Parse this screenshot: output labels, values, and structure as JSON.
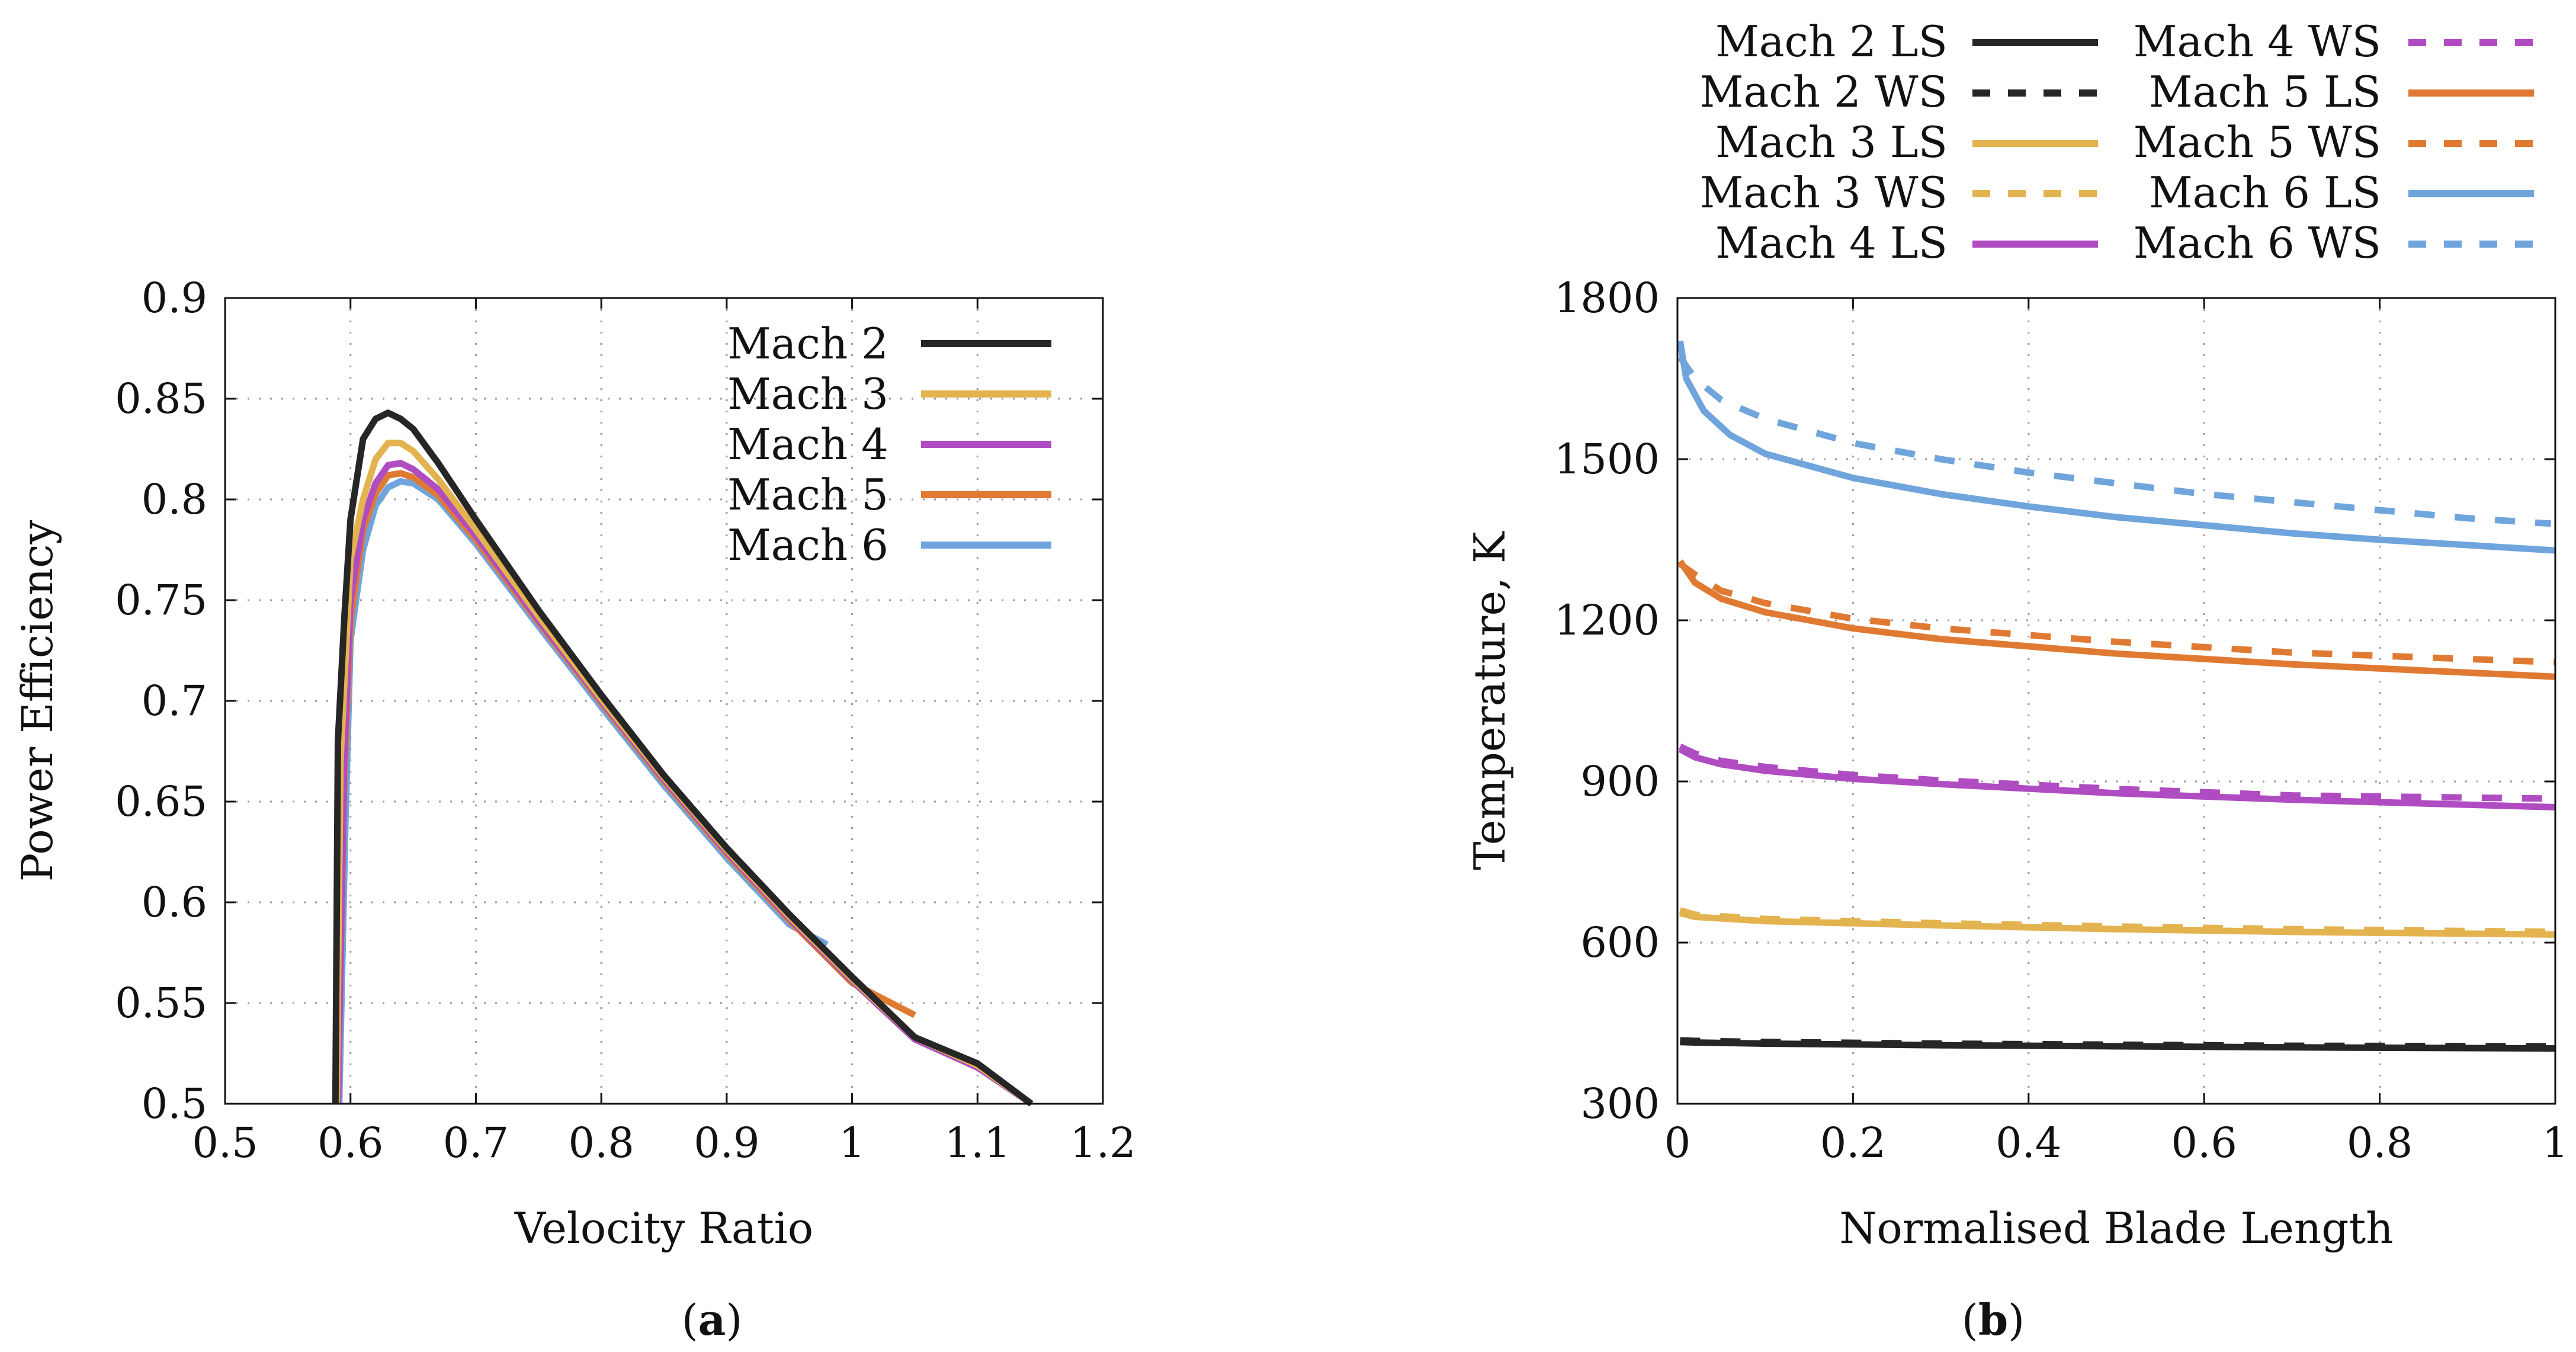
{
  "chart_data": [
    {
      "type": "line",
      "panel": "a",
      "caption_letter": "a",
      "xlabel": "Velocity Ratio",
      "ylabel": "Power Efficiency",
      "xlim": [
        0.5,
        1.2
      ],
      "ylim": [
        0.5,
        0.9
      ],
      "xticks": [
        "0.5",
        "0.6",
        "0.7",
        "0.8",
        "0.9",
        "1",
        "1.1",
        "1.2"
      ],
      "yticks": [
        "0.5",
        "0.55",
        "0.6",
        "0.65",
        "0.7",
        "0.75",
        "0.8",
        "0.85",
        "0.9"
      ],
      "grid": true,
      "legend_position": "top-right",
      "series": [
        {
          "name": "Mach 2",
          "color": "#262626",
          "x": [
            0.588,
            0.59,
            0.595,
            0.6,
            0.61,
            0.62,
            0.63,
            0.64,
            0.65,
            0.67,
            0.7,
            0.75,
            0.8,
            0.85,
            0.9,
            0.95,
            1.0,
            1.05,
            1.1,
            1.143
          ],
          "y": [
            0.5,
            0.68,
            0.74,
            0.79,
            0.83,
            0.84,
            0.843,
            0.84,
            0.835,
            0.818,
            0.79,
            0.745,
            0.703,
            0.663,
            0.627,
            0.594,
            0.563,
            0.533,
            0.52,
            0.5
          ]
        },
        {
          "name": "Mach 3",
          "color": "#e3b34f",
          "x": [
            0.589,
            0.592,
            0.6,
            0.61,
            0.62,
            0.63,
            0.64,
            0.65,
            0.67,
            0.7,
            0.75,
            0.8,
            0.85,
            0.9,
            0.95,
            1.0,
            1.05,
            1.1,
            1.143
          ],
          "y": [
            0.5,
            0.67,
            0.77,
            0.8,
            0.82,
            0.828,
            0.828,
            0.824,
            0.81,
            0.785,
            0.742,
            0.701,
            0.662,
            0.626,
            0.593,
            0.562,
            0.533,
            0.519,
            0.5
          ]
        },
        {
          "name": "Mach 4",
          "color": "#b04cc2",
          "x": [
            0.59,
            0.595,
            0.6,
            0.61,
            0.62,
            0.63,
            0.64,
            0.65,
            0.67,
            0.7,
            0.75,
            0.8,
            0.85,
            0.9,
            0.95,
            1.0,
            1.05,
            1.1,
            1.143
          ],
          "y": [
            0.5,
            0.67,
            0.75,
            0.79,
            0.808,
            0.817,
            0.818,
            0.815,
            0.805,
            0.782,
            0.74,
            0.7,
            0.661,
            0.625,
            0.592,
            0.561,
            0.532,
            0.518,
            0.5
          ]
        },
        {
          "name": "Mach 5",
          "color": "#e07a32",
          "x": [
            0.59,
            0.595,
            0.6,
            0.61,
            0.62,
            0.63,
            0.64,
            0.65,
            0.67,
            0.7,
            0.75,
            0.8,
            0.85,
            0.9,
            0.95,
            1.0,
            1.05
          ],
          "y": [
            0.5,
            0.66,
            0.74,
            0.785,
            0.803,
            0.812,
            0.813,
            0.811,
            0.802,
            0.78,
            0.739,
            0.699,
            0.66,
            0.624,
            0.591,
            0.56,
            0.544
          ]
        },
        {
          "name": "Mach 6",
          "color": "#6fa5dc",
          "x": [
            0.591,
            0.596,
            0.6,
            0.61,
            0.62,
            0.63,
            0.64,
            0.65,
            0.67,
            0.7,
            0.75,
            0.8,
            0.85,
            0.9,
            0.95,
            0.98
          ],
          "y": [
            0.5,
            0.64,
            0.73,
            0.775,
            0.797,
            0.806,
            0.809,
            0.808,
            0.8,
            0.778,
            0.737,
            0.697,
            0.658,
            0.622,
            0.589,
            0.579
          ]
        }
      ]
    },
    {
      "type": "line",
      "panel": "b",
      "caption_letter": "b",
      "xlabel": "Normalised Blade Length",
      "ylabel": "Temperature, K",
      "xlim": [
        0,
        1
      ],
      "ylim": [
        300,
        1800
      ],
      "xticks": [
        "0",
        "0.2",
        "0.4",
        "0.6",
        "0.8",
        "1"
      ],
      "yticks": [
        "300",
        "600",
        "900",
        "1200",
        "1500",
        "1800"
      ],
      "grid": true,
      "legend_position": "top, outside plot, two columns",
      "series": [
        {
          "name": "Mach 2 LS",
          "color": "#262626",
          "dash": false,
          "x": [
            0.003,
            0.02,
            0.1,
            0.3,
            0.5,
            0.7,
            1.0
          ],
          "y": [
            415,
            414,
            412,
            409,
            407,
            405,
            403
          ]
        },
        {
          "name": "Mach 2 WS",
          "color": "#262626",
          "dash": true,
          "x": [
            0.003,
            0.02,
            0.1,
            0.3,
            0.5,
            0.7,
            1.0
          ],
          "y": [
            418,
            417,
            415,
            412,
            410,
            408,
            407
          ]
        },
        {
          "name": "Mach 3 LS",
          "color": "#e3b34f",
          "dash": false,
          "x": [
            0.003,
            0.02,
            0.1,
            0.3,
            0.5,
            0.7,
            1.0
          ],
          "y": [
            655,
            648,
            640,
            632,
            625,
            620,
            615
          ]
        },
        {
          "name": "Mach 3 WS",
          "color": "#e3b34f",
          "dash": true,
          "x": [
            0.003,
            0.02,
            0.1,
            0.3,
            0.5,
            0.7,
            1.0
          ],
          "y": [
            660,
            652,
            644,
            636,
            630,
            625,
            620
          ]
        },
        {
          "name": "Mach 4 LS",
          "color": "#b04cc2",
          "dash": false,
          "x": [
            0.003,
            0.02,
            0.05,
            0.1,
            0.2,
            0.3,
            0.5,
            0.7,
            1.0
          ],
          "y": [
            960,
            945,
            932,
            920,
            905,
            895,
            878,
            866,
            852
          ]
        },
        {
          "name": "Mach 4 WS",
          "color": "#b04cc2",
          "dash": true,
          "x": [
            0.003,
            0.02,
            0.05,
            0.1,
            0.2,
            0.3,
            0.5,
            0.7,
            1.0
          ],
          "y": [
            965,
            952,
            938,
            927,
            912,
            902,
            886,
            874,
            868
          ]
        },
        {
          "name": "Mach 5 LS",
          "color": "#e07a32",
          "dash": false,
          "x": [
            0.003,
            0.02,
            0.05,
            0.1,
            0.2,
            0.3,
            0.5,
            0.7,
            1.0
          ],
          "y": [
            1310,
            1270,
            1240,
            1215,
            1185,
            1165,
            1138,
            1118,
            1095
          ]
        },
        {
          "name": "Mach 5 WS",
          "color": "#e07a32",
          "dash": true,
          "x": [
            0.003,
            0.02,
            0.05,
            0.1,
            0.2,
            0.3,
            0.5,
            0.7,
            1.0
          ],
          "y": [
            1305,
            1285,
            1255,
            1232,
            1203,
            1185,
            1160,
            1140,
            1122
          ]
        },
        {
          "name": "Mach 6 LS",
          "color": "#6fa5dc",
          "dash": false,
          "x": [
            0.003,
            0.01,
            0.03,
            0.06,
            0.1,
            0.2,
            0.3,
            0.4,
            0.5,
            0.6,
            0.7,
            0.8,
            1.0
          ],
          "y": [
            1720,
            1650,
            1590,
            1545,
            1510,
            1465,
            1435,
            1412,
            1392,
            1377,
            1362,
            1350,
            1330
          ]
        },
        {
          "name": "Mach 6 WS",
          "color": "#6fa5dc",
          "dash": true,
          "x": [
            0.003,
            0.02,
            0.05,
            0.1,
            0.2,
            0.3,
            0.4,
            0.5,
            0.6,
            0.7,
            0.8,
            0.9,
            0.995
          ],
          "y": [
            1690,
            1650,
            1610,
            1575,
            1530,
            1500,
            1475,
            1455,
            1435,
            1420,
            1405,
            1390,
            1380
          ]
        }
      ]
    }
  ]
}
